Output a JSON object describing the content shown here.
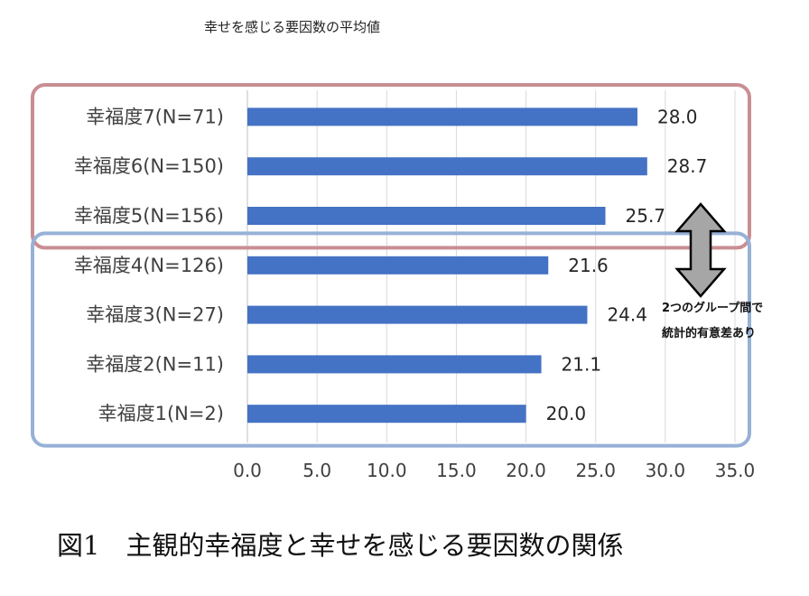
{
  "chart_data": {
    "type": "bar",
    "orientation": "horizontal",
    "title": "幸せを感じる要因数の平均値",
    "caption": "図1　主観的幸福度と幸せを感じる要因数の関係",
    "categories": [
      "幸福度7(N=71)",
      "幸福度6(N=150)",
      "幸福度5(N=156)",
      "幸福度4(N=126)",
      "幸福度3(N=27)",
      "幸福度2(N=11)",
      "幸福度1(N=2)"
    ],
    "values": [
      28.0,
      28.7,
      25.7,
      21.6,
      24.4,
      21.1,
      20.0
    ],
    "value_labels": [
      "28.0",
      "28.7",
      "25.7",
      "21.6",
      "24.4",
      "21.1",
      "20.0"
    ],
    "xlim": [
      0,
      35
    ],
    "x_ticks": [
      "0.0",
      "5.0",
      "10.0",
      "15.0",
      "20.0",
      "25.0",
      "30.0",
      "35.0"
    ],
    "grid": "vertical",
    "bar_color": "#4472C4",
    "groups": [
      {
        "name": "upper",
        "categories": [
          0,
          1,
          2
        ],
        "border_color": "#C98E93"
      },
      {
        "name": "lower",
        "categories": [
          3,
          4,
          5,
          6
        ],
        "border_color": "#97B1D6"
      }
    ],
    "annotation": {
      "lines": [
        "2つのグループ間で",
        "統計的有意差あり"
      ],
      "arrow_color": "#A6A6A6"
    }
  }
}
